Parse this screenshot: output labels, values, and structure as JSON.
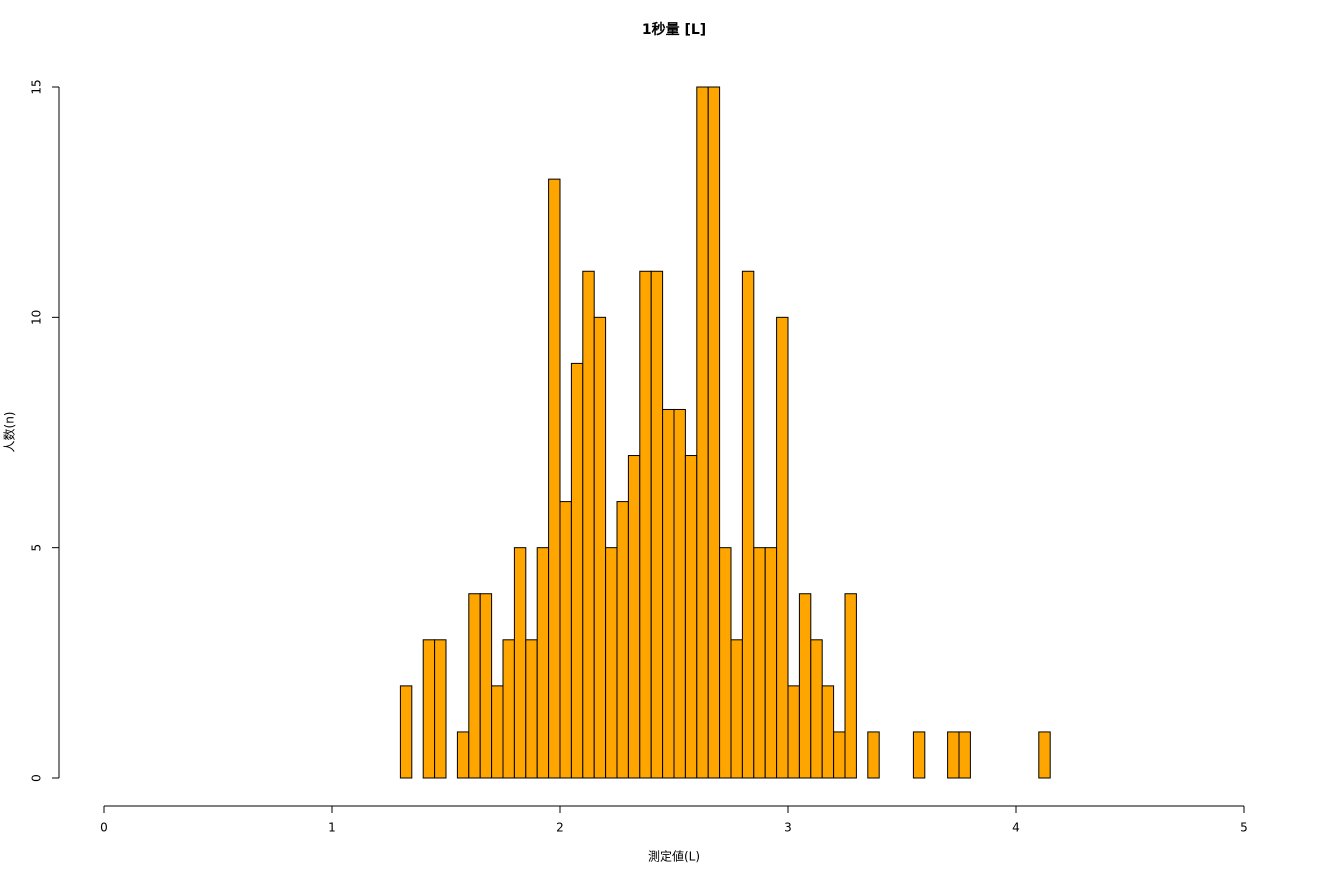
{
  "chart_data": {
    "type": "histogram",
    "title": "1秒量 [L]",
    "x_label": "測定値(L)",
    "y_label": "人数(n)",
    "bins": [
      1.3,
      1.35,
      1.4,
      1.45,
      1.5,
      1.55,
      1.6,
      1.65,
      1.7,
      1.75,
      1.8,
      1.85,
      1.9,
      1.95,
      2,
      2.05,
      2.1,
      2.15,
      2.2,
      2.25,
      2.3,
      2.35,
      2.4,
      2.45,
      2.5,
      2.55,
      2.6,
      2.65,
      2.7,
      2.75,
      2.8,
      2.85,
      2.9,
      2.95,
      3,
      3.05,
      3.1,
      3.15,
      3.2,
      3.25,
      3.3,
      3.35,
      3.4,
      3.45,
      3.5,
      3.55,
      3.6,
      3.65,
      3.7,
      3.75,
      3.8,
      3.85,
      3.9,
      3.95,
      4,
      4.05,
      4.1,
      4.15
    ],
    "values": [
      2,
      0,
      3,
      3,
      0,
      1,
      4,
      4,
      2,
      3,
      5,
      3,
      5,
      13,
      6,
      9,
      11,
      10,
      5,
      6,
      7,
      11,
      11,
      8,
      8,
      7,
      15,
      15,
      5,
      3,
      11,
      5,
      5,
      10,
      2,
      4,
      3,
      2,
      1,
      4,
      0,
      1,
      0,
      0,
      0,
      1,
      0,
      0,
      1,
      1,
      0,
      0,
      0,
      0,
      0,
      0,
      1
    ],
    "color": "#ffa500",
    "xlim": [
      0,
      5
    ],
    "xticks": [
      0,
      1,
      2,
      3,
      4,
      5
    ],
    "ylim": [
      0,
      15
    ],
    "yticks": [
      0,
      5,
      10,
      15
    ]
  }
}
